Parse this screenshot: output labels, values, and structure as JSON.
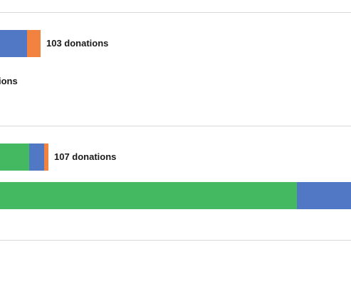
{
  "chart_data": {
    "type": "bar",
    "orientation": "horizontal",
    "stacked": true,
    "colors": [
      "#45b862",
      "#5078c5",
      "#f2823f"
    ],
    "groups": [
      {
        "bars": [
          {
            "values": [
              0,
              38,
              19
            ],
            "label": "103 donations"
          },
          {
            "values": [],
            "label": "ions"
          }
        ]
      },
      {
        "bars": [
          {
            "values": [
              41,
              21,
              6
            ],
            "label": "107 donations"
          },
          {
            "values": [
              417,
              76,
              0
            ],
            "label": ""
          }
        ]
      }
    ]
  }
}
